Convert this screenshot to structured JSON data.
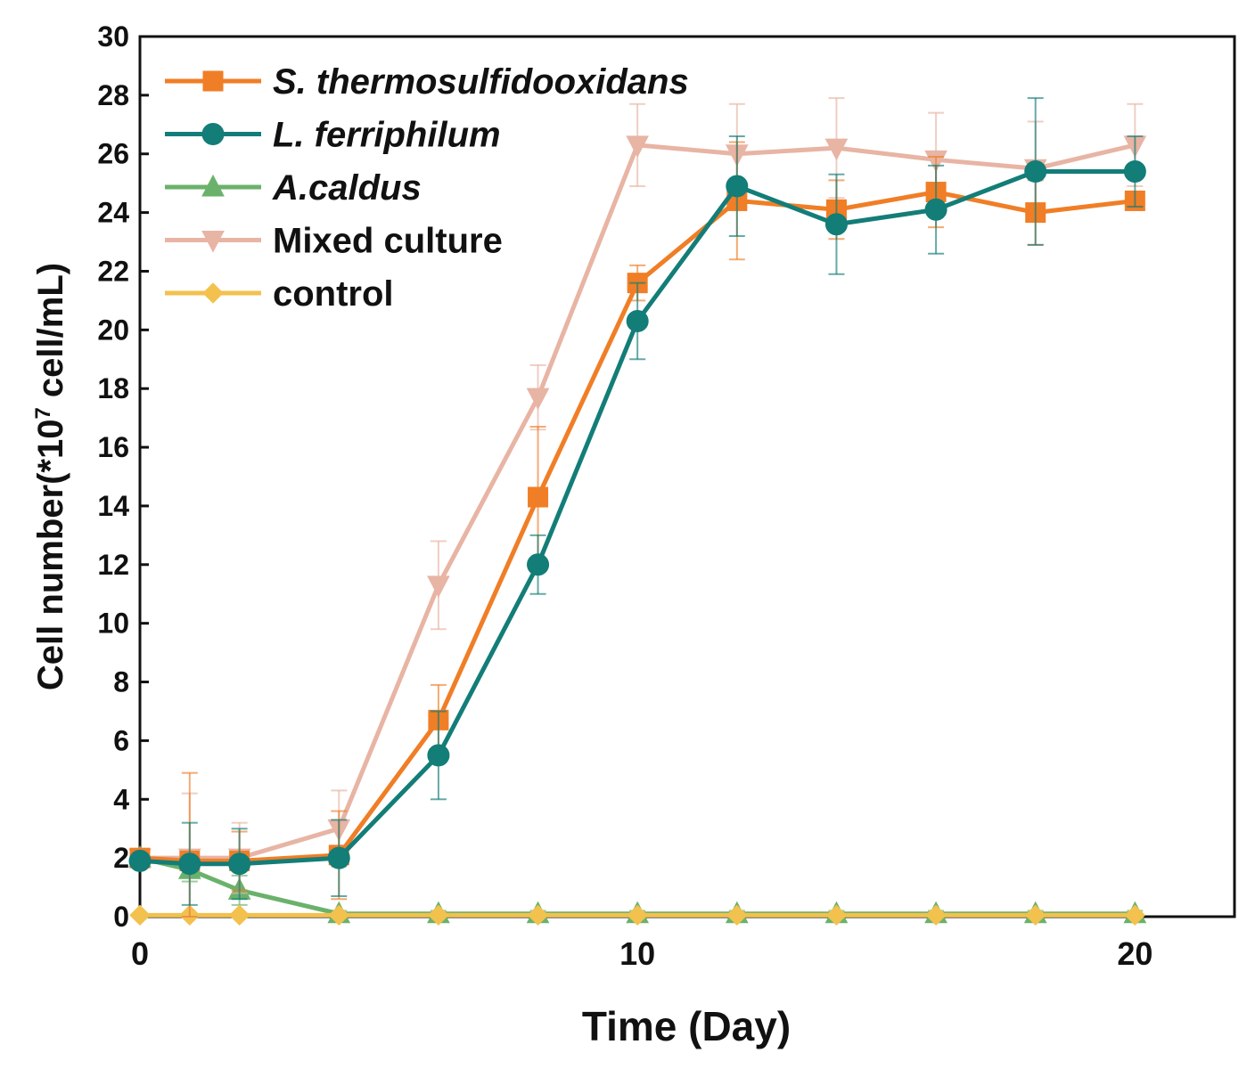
{
  "chart_data": {
    "type": "line",
    "title": "",
    "xlabel": "Time (Day)",
    "ylabel_main": "Cell number(*10",
    "ylabel_sup": "7",
    "ylabel_tail": " cell/mL)",
    "xlim": [
      0,
      22
    ],
    "ylim": [
      0,
      30
    ],
    "xticks": [
      0,
      10,
      20
    ],
    "yticks": [
      0,
      2,
      4,
      6,
      8,
      10,
      12,
      14,
      16,
      18,
      20,
      22,
      24,
      26,
      28,
      30
    ],
    "legend_position": "top-left",
    "grid": false,
    "series": [
      {
        "name": "S. thermosulfidooxidans",
        "italic": true,
        "color": "#f07e26",
        "marker": "square",
        "x": [
          0,
          1,
          2,
          4,
          6,
          8,
          10,
          12,
          14,
          16,
          18,
          20
        ],
        "y": [
          2.0,
          1.9,
          1.9,
          2.1,
          6.7,
          14.3,
          21.6,
          24.4,
          24.1,
          24.7,
          24.0,
          24.4
        ],
        "err": [
          0.2,
          3.0,
          1.0,
          1.5,
          1.2,
          2.4,
          0.6,
          2.0,
          1.0,
          1.2,
          1.1,
          0.3
        ]
      },
      {
        "name": "L. ferriphilum",
        "italic": true,
        "color": "#137d78",
        "marker": "circle",
        "x": [
          0,
          1,
          2,
          4,
          6,
          8,
          10,
          12,
          14,
          16,
          18,
          20
        ],
        "y": [
          1.9,
          1.8,
          1.8,
          2.0,
          5.5,
          12.0,
          20.3,
          24.9,
          23.6,
          24.1,
          25.4,
          25.4
        ],
        "err": [
          0.2,
          1.4,
          1.2,
          1.3,
          1.5,
          1.0,
          1.3,
          1.7,
          1.7,
          1.5,
          2.5,
          1.2
        ]
      },
      {
        "name": "A.caldus",
        "italic": true,
        "color": "#6ab26b",
        "marker": "triangle-up",
        "x": [
          0,
          1,
          2,
          4,
          6,
          8,
          10,
          12,
          14,
          16,
          18,
          20
        ],
        "y": [
          2.0,
          1.6,
          0.9,
          0.1,
          0.1,
          0.1,
          0.1,
          0.1,
          0.1,
          0.1,
          0.1,
          0.1
        ],
        "err": [
          0.3,
          0.4,
          0.5,
          0.1,
          0.1,
          0.1,
          0.1,
          0.1,
          0.1,
          0.1,
          0.1,
          0.1
        ]
      },
      {
        "name": "Mixed culture",
        "italic": false,
        "color": "#e8b4a4",
        "marker": "triangle-down",
        "x": [
          0,
          1,
          2,
          4,
          6,
          8,
          10,
          12,
          14,
          16,
          18,
          20
        ],
        "y": [
          2.0,
          2.0,
          2.0,
          3.0,
          11.3,
          17.7,
          26.3,
          26.0,
          26.2,
          25.8,
          25.5,
          26.3
        ],
        "err": [
          0.3,
          2.2,
          1.2,
          1.3,
          1.5,
          1.1,
          1.4,
          1.7,
          1.7,
          1.6,
          1.6,
          1.4
        ]
      },
      {
        "name": "control",
        "italic": false,
        "color": "#f2c14e",
        "marker": "diamond",
        "x": [
          0,
          1,
          2,
          4,
          6,
          8,
          10,
          12,
          14,
          16,
          18,
          20
        ],
        "y": [
          0.05,
          0.05,
          0.05,
          0.05,
          0.05,
          0.05,
          0.05,
          0.05,
          0.05,
          0.05,
          0.05,
          0.05
        ],
        "err": [
          0,
          0,
          0,
          0,
          0,
          0,
          0,
          0,
          0,
          0,
          0,
          0
        ]
      }
    ]
  }
}
